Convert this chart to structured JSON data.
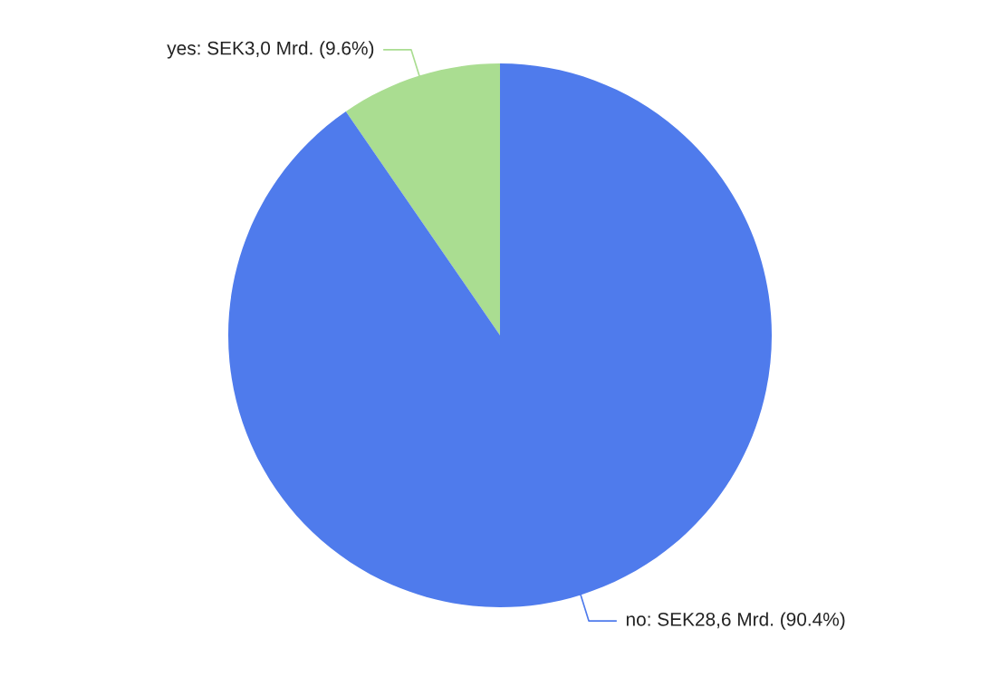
{
  "chart_data": {
    "type": "pie",
    "categories": [
      "yes",
      "no"
    ],
    "values": [
      9.6,
      90.4
    ],
    "value_labels": [
      "SEK3,0 Mrd. (9.6%)",
      "SEK28,6 Mrd. (90.4%)"
    ],
    "colors": [
      "#aadd91",
      "#4f7bec"
    ],
    "legend": false
  }
}
